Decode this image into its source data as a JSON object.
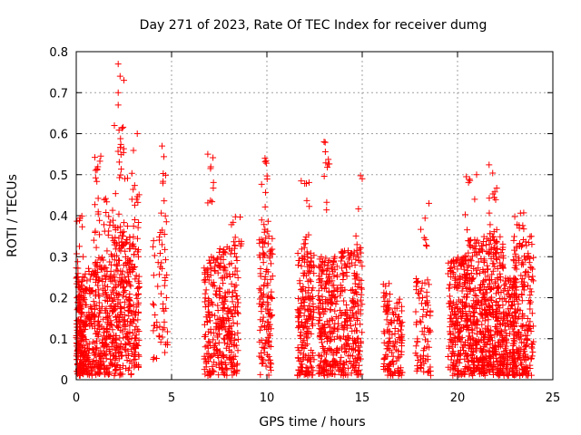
{
  "chart_data": {
    "type": "scatter",
    "title": "Day 271 of 2023, Rate Of TEC Index for receiver dumg",
    "xlabel": "GPS time / hours",
    "ylabel": "ROTI / TECUs",
    "xlim": [
      0,
      25
    ],
    "ylim": [
      0,
      0.8
    ],
    "xticks": [
      "0",
      "5",
      "10",
      "15",
      "20",
      "25"
    ],
    "yticks": [
      "0",
      "0.1",
      "0.2",
      "0.3",
      "0.4",
      "0.5",
      "0.6",
      "0.7",
      "0.8"
    ],
    "grid": true,
    "marker": "+",
    "color": "#ff0000",
    "series": [
      {
        "clusters": [
          {
            "x": [
              0.0,
              0.4
            ],
            "y": [
              0.01,
              0.25
            ],
            "n": 160
          },
          {
            "x": [
              0.0,
              0.4
            ],
            "y": [
              0.25,
              0.4
            ],
            "n": 14
          },
          {
            "x": [
              0.4,
              1.1
            ],
            "y": [
              0.01,
              0.28
            ],
            "n": 150
          },
          {
            "x": [
              0.9,
              1.3
            ],
            "y": [
              0.28,
              0.56
            ],
            "n": 22
          },
          {
            "x": [
              1.1,
              2.0
            ],
            "y": [
              0.01,
              0.3
            ],
            "n": 190
          },
          {
            "x": [
              1.4,
              2.0
            ],
            "y": [
              0.3,
              0.45
            ],
            "n": 18
          },
          {
            "x": [
              2.0,
              2.9
            ],
            "y": [
              0.01,
              0.35
            ],
            "n": 210
          },
          {
            "x": [
              1.9,
              2.7
            ],
            "y": [
              0.35,
              0.62
            ],
            "n": 30
          },
          {
            "x": [
              2.9,
              3.3
            ],
            "y": [
              0.03,
              0.35
            ],
            "n": 80
          },
          {
            "x": [
              2.9,
              3.3
            ],
            "y": [
              0.35,
              0.6
            ],
            "n": 14
          },
          {
            "x": [
              4.0,
              4.8
            ],
            "y": [
              0.05,
              0.35
            ],
            "n": 50
          },
          {
            "x": [
              4.4,
              4.8
            ],
            "y": [
              0.35,
              0.57
            ],
            "n": 12
          },
          {
            "x": [
              6.7,
              7.5
            ],
            "y": [
              0.01,
              0.3
            ],
            "n": 130
          },
          {
            "x": [
              6.8,
              7.2
            ],
            "y": [
              0.4,
              0.55
            ],
            "n": 8
          },
          {
            "x": [
              7.5,
              8.5
            ],
            "y": [
              0.01,
              0.33
            ],
            "n": 190
          },
          {
            "x": [
              8.0,
              8.7
            ],
            "y": [
              0.3,
              0.4
            ],
            "n": 14
          },
          {
            "x": [
              9.6,
              10.3
            ],
            "y": [
              0.01,
              0.35
            ],
            "n": 120
          },
          {
            "x": [
              9.7,
              10.1
            ],
            "y": [
              0.35,
              0.55
            ],
            "n": 14
          },
          {
            "x": [
              11.6,
              12.5
            ],
            "y": [
              0.01,
              0.32
            ],
            "n": 180
          },
          {
            "x": [
              11.8,
              12.3
            ],
            "y": [
              0.32,
              0.5
            ],
            "n": 12
          },
          {
            "x": [
              12.7,
              13.5
            ],
            "y": [
              0.01,
              0.3
            ],
            "n": 180
          },
          {
            "x": [
              13.0,
              13.3
            ],
            "y": [
              0.38,
              0.58
            ],
            "n": 10
          },
          {
            "x": [
              13.5,
              15.0
            ],
            "y": [
              0.01,
              0.32
            ],
            "n": 260
          },
          {
            "x": [
              14.4,
              15.0
            ],
            "y": [
              0.3,
              0.5
            ],
            "n": 8
          },
          {
            "x": [
              16.1,
              16.5
            ],
            "y": [
              0.01,
              0.24
            ],
            "n": 60
          },
          {
            "x": [
              16.5,
              17.1
            ],
            "y": [
              0.01,
              0.2
            ],
            "n": 70
          },
          {
            "x": [
              17.8,
              18.6
            ],
            "y": [
              0.01,
              0.25
            ],
            "n": 80
          },
          {
            "x": [
              17.9,
              18.4
            ],
            "y": [
              0.31,
              0.43
            ],
            "n": 6
          },
          {
            "x": [
              19.5,
              20.5
            ],
            "y": [
              0.01,
              0.3
            ],
            "n": 220
          },
          {
            "x": [
              20.4,
              21.0
            ],
            "y": [
              0.3,
              0.5
            ],
            "n": 10
          },
          {
            "x": [
              20.5,
              21.5
            ],
            "y": [
              0.01,
              0.35
            ],
            "n": 260
          },
          {
            "x": [
              21.5,
              22.4
            ],
            "y": [
              0.01,
              0.35
            ],
            "n": 240
          },
          {
            "x": [
              21.6,
              22.1
            ],
            "y": [
              0.35,
              0.53
            ],
            "n": 14
          },
          {
            "x": [
              22.4,
              23.1
            ],
            "y": [
              0.01,
              0.25
            ],
            "n": 140
          },
          {
            "x": [
              22.9,
              24.0
            ],
            "y": [
              0.01,
              0.35
            ],
            "n": 200
          },
          {
            "x": [
              23.0,
              23.5
            ],
            "y": [
              0.35,
              0.41
            ],
            "n": 8
          }
        ],
        "points": [
          {
            "x": 2.2,
            "y": 0.77
          },
          {
            "x": 2.3,
            "y": 0.74
          },
          {
            "x": 2.5,
            "y": 0.73
          },
          {
            "x": 2.2,
            "y": 0.7
          },
          {
            "x": 2.2,
            "y": 0.67
          },
          {
            "x": 3.2,
            "y": 0.6
          },
          {
            "x": 2.0,
            "y": 0.62
          },
          {
            "x": 4.5,
            "y": 0.57
          },
          {
            "x": 6.9,
            "y": 0.55
          },
          {
            "x": 13.0,
            "y": 0.58
          },
          {
            "x": 15.0,
            "y": 0.49
          },
          {
            "x": 21.0,
            "y": 0.5
          },
          {
            "x": 20.9,
            "y": 0.44
          },
          {
            "x": 18.5,
            "y": 0.43
          },
          {
            "x": 9.9,
            "y": 0.54
          }
        ]
      }
    ]
  }
}
